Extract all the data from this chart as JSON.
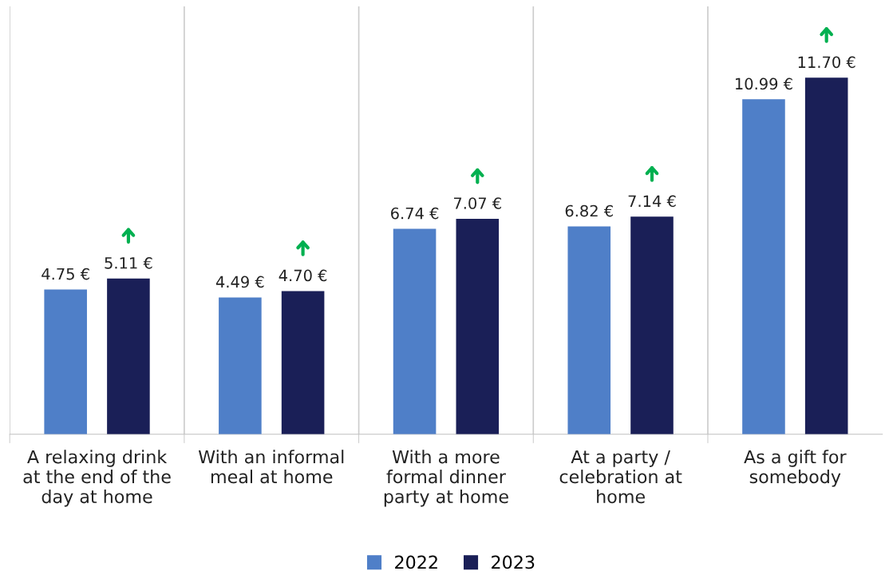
{
  "chart_data": {
    "type": "bar",
    "categories": [
      "A relaxing drink\nat the end of the\nday at home",
      "With an informal\nmeal at home",
      "With a more\nformal dinner\nparty at home",
      "At a party /\ncelebration at\nhome",
      "As a gift for\nsomebody"
    ],
    "series": [
      {
        "name": "2022",
        "color": "#4f7fc8",
        "values": [
          4.75,
          4.49,
          6.74,
          6.82,
          10.99
        ],
        "value_labels": [
          "4.75 €",
          "4.49 €",
          "6.74 €",
          "6.82 €",
          "10.99 €"
        ]
      },
      {
        "name": "2023",
        "color": "#1a1f57",
        "values": [
          5.11,
          4.7,
          7.07,
          7.14,
          11.7
        ],
        "value_labels": [
          "5.11 €",
          "4.70 €",
          "7.07 €",
          "7.14 €",
          "11.70 €"
        ]
      }
    ],
    "grid": "x",
    "legend": "bottom",
    "tick_labels": "x"
  }
}
